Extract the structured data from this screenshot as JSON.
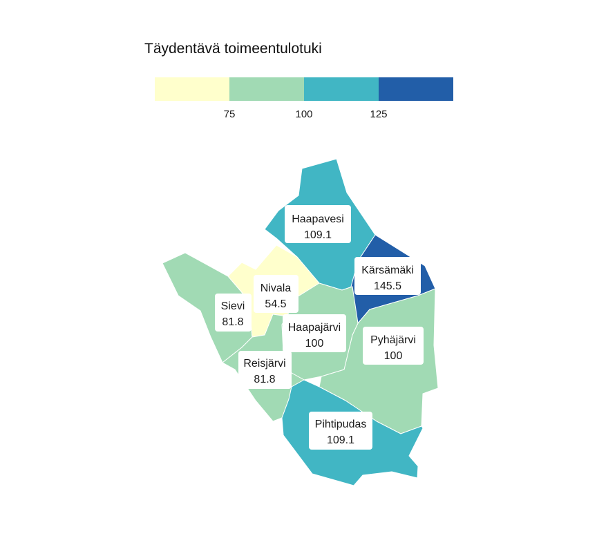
{
  "legend": {
    "title": "Täydentävä toimeentulotuki",
    "ticks": [
      "75",
      "100",
      "125"
    ],
    "colors": [
      "#ffffcc",
      "#a1dab4",
      "#41b6c4",
      "#225ea8"
    ]
  },
  "regions": [
    {
      "key": "haapavesi",
      "name": "Haapavesi",
      "value": "109.1",
      "color": "#41b6c4"
    },
    {
      "key": "karsamaki",
      "name": "Kärsämäki",
      "value": "145.5",
      "color": "#225ea8"
    },
    {
      "key": "nivala",
      "name": "Nivala",
      "value": "54.5",
      "color": "#ffffcc"
    },
    {
      "key": "sievi",
      "name": "Sievi",
      "value": "81.8",
      "color": "#a1dab4"
    },
    {
      "key": "haapajarvi",
      "name": "Haapajärvi",
      "value": "100",
      "color": "#a1dab4"
    },
    {
      "key": "pyhajarvi",
      "name": "Pyhäjärvi",
      "value": "100",
      "color": "#a1dab4"
    },
    {
      "key": "reisjarvi",
      "name": "Reisjärvi",
      "value": "81.8",
      "color": "#a1dab4"
    },
    {
      "key": "pihtipudas",
      "name": "Pihtipudas",
      "value": "109.1",
      "color": "#41b6c4"
    }
  ]
}
